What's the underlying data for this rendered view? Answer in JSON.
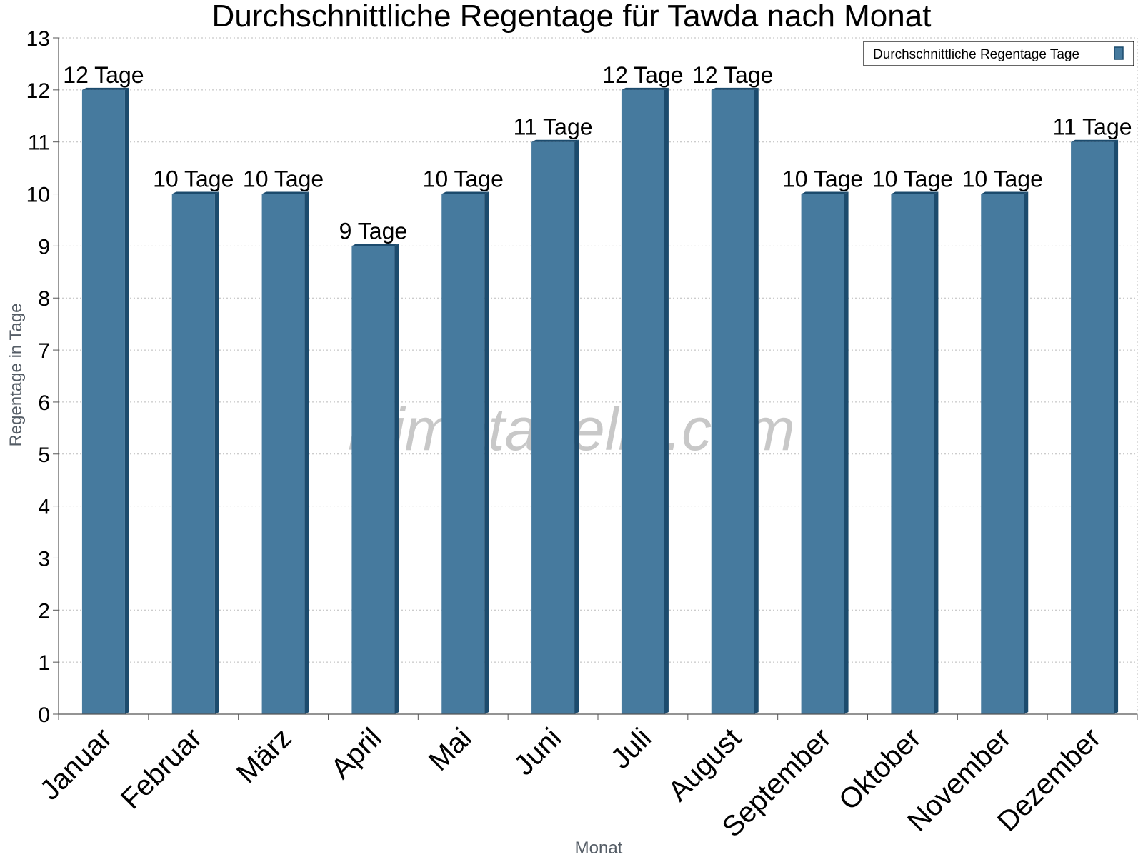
{
  "chart_data": {
    "type": "bar",
    "title": "Durchschnittliche Regentage für Tawda nach Monat",
    "xlabel": "Monat",
    "ylabel": "Regentage in Tage",
    "ylim": [
      0,
      13
    ],
    "yticks": [
      0,
      1,
      2,
      3,
      4,
      5,
      6,
      7,
      8,
      9,
      10,
      11,
      12,
      13
    ],
    "grid": true,
    "legend_position": "top-right",
    "categories": [
      "Januar",
      "Februar",
      "März",
      "April",
      "Mai",
      "Juni",
      "Juli",
      "August",
      "September",
      "Oktober",
      "November",
      "Dezember"
    ],
    "series": [
      {
        "name": "Durchschnittliche Regentage Tage",
        "values": [
          12,
          10,
          10,
          9,
          10,
          11,
          12,
          12,
          10,
          10,
          10,
          11
        ],
        "data_labels": [
          "12 Tage",
          "10 Tage",
          "10 Tage",
          "9 Tage",
          "10 Tage",
          "11 Tage",
          "12 Tage",
          "12 Tage",
          "10 Tage",
          "10 Tage",
          "10 Tage",
          "11 Tage"
        ],
        "color": "#467a9e",
        "side_color": "#1c4b6d"
      }
    ]
  },
  "watermark": "klimatabelle.com"
}
